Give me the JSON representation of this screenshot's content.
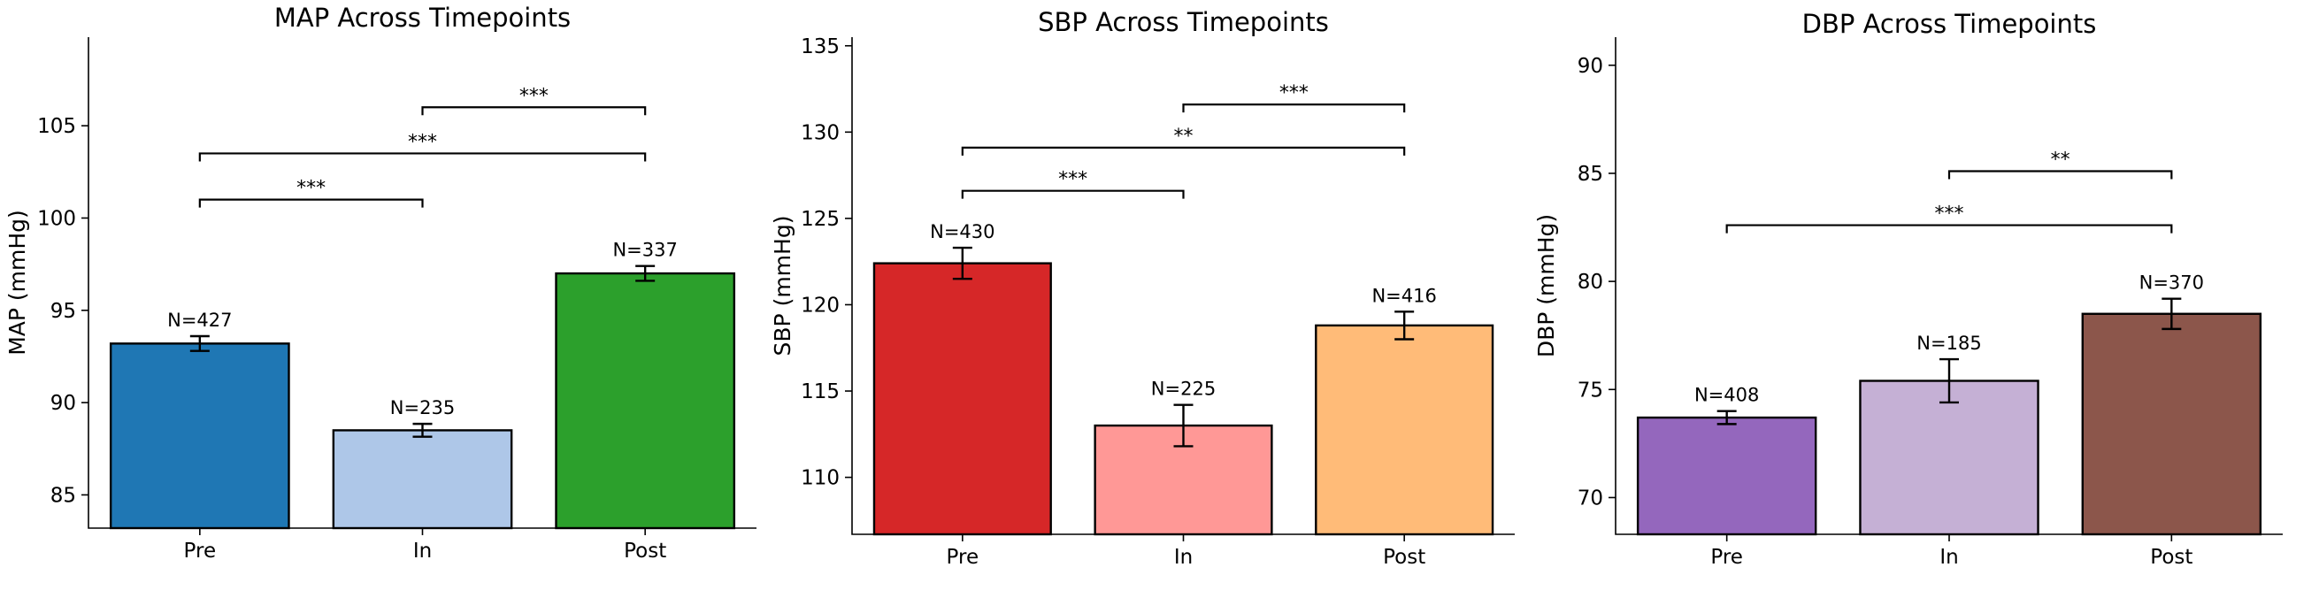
{
  "chart_data": [
    {
      "type": "bar",
      "title": "MAP Across Timepoints",
      "ylabel": "MAP (mmHg)",
      "categories": [
        "Pre",
        "In",
        "Post"
      ],
      "values": [
        93.2,
        88.5,
        97.0
      ],
      "errors": [
        0.4,
        0.35,
        0.4
      ],
      "n_labels": [
        "N=427",
        "N=235",
        "N=337"
      ],
      "colors": [
        "#1f77b4",
        "#aec7e8",
        "#2ca02c"
      ],
      "ylim": [
        83.2,
        109.8
      ],
      "yticks": [
        85,
        90,
        95,
        100,
        105
      ],
      "ytick_labels": [
        "85",
        "90",
        "95",
        "100",
        "105"
      ],
      "significance": [
        {
          "from": 0,
          "to": 1,
          "y": 101.0,
          "label": "***"
        },
        {
          "from": 0,
          "to": 2,
          "y": 103.5,
          "label": "***"
        },
        {
          "from": 1,
          "to": 2,
          "y": 106.0,
          "label": "***"
        }
      ]
    },
    {
      "type": "bar",
      "title": "SBP Across Timepoints",
      "ylabel": "SBP (mmHg)",
      "categories": [
        "Pre",
        "In",
        "Post"
      ],
      "values": [
        122.4,
        113.0,
        118.8
      ],
      "errors": [
        0.9,
        1.2,
        0.8
      ],
      "n_labels": [
        "N=430",
        "N=225",
        "N=416"
      ],
      "colors": [
        "#d62728",
        "#ff9896",
        "#ffbb78"
      ],
      "ylim": [
        106.7,
        135.5
      ],
      "yticks": [
        110,
        115,
        120,
        125,
        130,
        135
      ],
      "ytick_labels": [
        "110",
        "115",
        "120",
        "125",
        "130",
        "135"
      ],
      "significance": [
        {
          "from": 0,
          "to": 1,
          "y": 126.6,
          "label": "***"
        },
        {
          "from": 0,
          "to": 2,
          "y": 129.1,
          "label": "**"
        },
        {
          "from": 1,
          "to": 2,
          "y": 131.6,
          "label": "***"
        }
      ]
    },
    {
      "type": "bar",
      "title": "DBP Across Timepoints",
      "ylabel": "DBP (mmHg)",
      "categories": [
        "Pre",
        "In",
        "Post"
      ],
      "values": [
        73.7,
        75.4,
        78.5
      ],
      "errors": [
        0.3,
        1.0,
        0.7
      ],
      "n_labels": [
        "N=408",
        "N=185",
        "N=370"
      ],
      "colors": [
        "#9467bd",
        "#c5b0d5",
        "#8c564b"
      ],
      "ylim": [
        68.3,
        91.3
      ],
      "yticks": [
        70,
        75,
        80,
        85,
        90
      ],
      "ytick_labels": [
        "70",
        "75",
        "80",
        "85",
        "90"
      ],
      "significance": [
        {
          "from": 0,
          "to": 2,
          "y": 82.6,
          "label": "***"
        },
        {
          "from": 1,
          "to": 2,
          "y": 85.1,
          "label": "**"
        }
      ]
    }
  ]
}
